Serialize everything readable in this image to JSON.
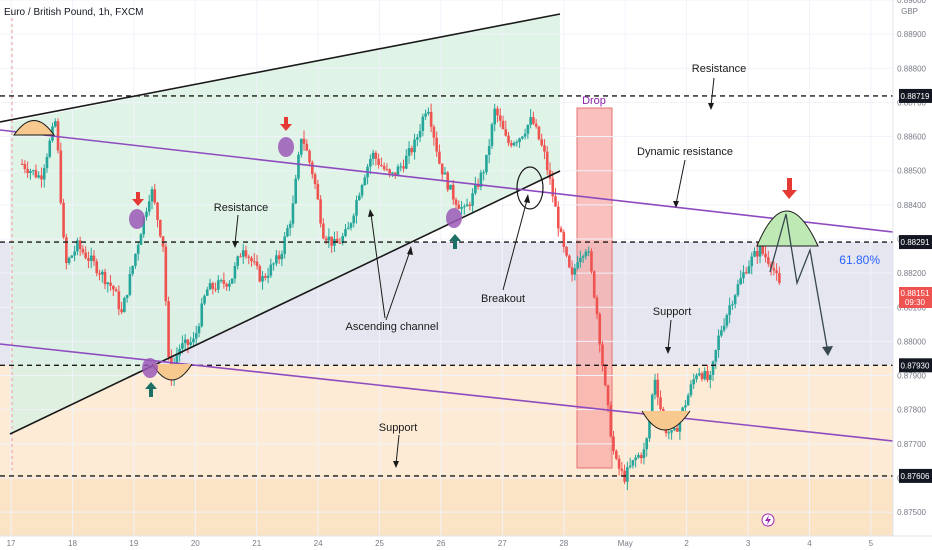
{
  "header": {
    "title": "Euro / British Pound, 1h, FXCM"
  },
  "currency": "GBP",
  "chart_data": {
    "type": "candlestick",
    "instrument": "Euro / British Pound",
    "timeframe": "1h",
    "exchange": "FXCM",
    "y_unit": "GBP",
    "ylim": [
      0.8743,
      0.89
    ],
    "y_ticks": [
      "0.89000",
      "0.88900",
      "0.88800",
      "0.88700",
      "0.88600",
      "0.88500",
      "0.88400",
      "0.88300",
      "0.88200",
      "0.88100",
      "0.88000",
      "0.87900",
      "0.87800",
      "0.87700",
      "0.87600",
      "0.87500"
    ],
    "x_ticks": [
      {
        "label": "17",
        "t": -0.18
      },
      {
        "label": "18",
        "t": 0.82
      },
      {
        "label": "19",
        "t": 1.82
      },
      {
        "label": "20",
        "t": 2.82
      },
      {
        "label": "21",
        "t": 3.82
      },
      {
        "label": "24",
        "t": 4.82
      },
      {
        "label": "25",
        "t": 5.82
      },
      {
        "label": "26",
        "t": 6.82
      },
      {
        "label": "27",
        "t": 7.82
      },
      {
        "label": "28",
        "t": 8.82
      },
      {
        "label": "May",
        "t": 9.82
      },
      {
        "label": "2",
        "t": 10.82
      },
      {
        "label": "3",
        "t": 11.82
      },
      {
        "label": "4",
        "t": 12.82
      },
      {
        "label": "5",
        "t": 13.82
      }
    ],
    "price_path": [
      [
        0.0,
        0.8852
      ],
      [
        0.3,
        0.8848
      ],
      [
        0.55,
        0.8865
      ],
      [
        0.7,
        0.8822
      ],
      [
        0.9,
        0.8828
      ],
      [
        1.2,
        0.8822
      ],
      [
        1.5,
        0.8815
      ],
      [
        1.62,
        0.8808
      ],
      [
        1.9,
        0.883
      ],
      [
        2.1,
        0.8845
      ],
      [
        2.3,
        0.8828
      ],
      [
        2.4,
        0.8788
      ],
      [
        2.55,
        0.8798
      ],
      [
        2.8,
        0.88
      ],
      [
        3.0,
        0.8815
      ],
      [
        3.4,
        0.8818
      ],
      [
        3.6,
        0.8828
      ],
      [
        3.9,
        0.8818
      ],
      [
        4.2,
        0.8825
      ],
      [
        4.4,
        0.8838
      ],
      [
        4.55,
        0.8861
      ],
      [
        4.75,
        0.8848
      ],
      [
        4.9,
        0.8832
      ],
      [
        5.1,
        0.8828
      ],
      [
        5.3,
        0.8832
      ],
      [
        5.55,
        0.8848
      ],
      [
        5.7,
        0.8855
      ],
      [
        6.0,
        0.8848
      ],
      [
        6.2,
        0.8852
      ],
      [
        6.4,
        0.8858
      ],
      [
        6.6,
        0.887
      ],
      [
        6.8,
        0.8852
      ],
      [
        7.0,
        0.8843
      ],
      [
        7.2,
        0.8838
      ],
      [
        7.35,
        0.8843
      ],
      [
        7.55,
        0.8852
      ],
      [
        7.7,
        0.8868
      ],
      [
        7.9,
        0.8858
      ],
      [
        8.1,
        0.886
      ],
      [
        8.3,
        0.8865
      ],
      [
        8.5,
        0.8855
      ],
      [
        8.65,
        0.8842
      ],
      [
        8.8,
        0.8828
      ],
      [
        8.95,
        0.8818
      ],
      [
        9.05,
        0.8825
      ],
      [
        9.2,
        0.8828
      ],
      [
        9.35,
        0.881
      ],
      [
        9.5,
        0.8785
      ],
      [
        9.65,
        0.8765
      ],
      [
        9.8,
        0.876
      ],
      [
        10.0,
        0.8766
      ],
      [
        10.15,
        0.8768
      ],
      [
        10.3,
        0.879
      ],
      [
        10.45,
        0.8775
      ],
      [
        10.6,
        0.8772
      ],
      [
        10.8,
        0.8782
      ],
      [
        11.0,
        0.8792
      ],
      [
        11.2,
        0.8788
      ],
      [
        11.35,
        0.8802
      ],
      [
        11.55,
        0.8812
      ],
      [
        11.8,
        0.8822
      ],
      [
        12.0,
        0.8827
      ],
      [
        12.2,
        0.8823
      ],
      [
        12.35,
        0.8815
      ]
    ],
    "current_price": "0.88151",
    "countdown": "09:30",
    "fib_label": "61.80%",
    "levels": [
      {
        "value": "0.88719",
        "price": 0.88719,
        "kind": "resistance"
      },
      {
        "value": "0.88291",
        "price": 0.88291,
        "kind": "fibonacci"
      },
      {
        "value": "0.87930",
        "price": 0.8793,
        "kind": "support"
      },
      {
        "value": "0.87606",
        "price": 0.87606,
        "kind": "support"
      }
    ],
    "annotations": {
      "resistance_top": "Resistance",
      "dynamic_resistance": "Dynamic resistance",
      "resistance_mid": "Resistance",
      "breakout": "Breakout",
      "ascending_channel": "Ascending channel",
      "support_mid": "Support",
      "support_bottom": "Support",
      "drop": "Drop"
    },
    "colors": {
      "up": "#26a69a",
      "down": "#ef5350",
      "channel_fill": "#d9f1e3",
      "zone_fill": "#e6e6f1",
      "support_fill": "#fdebd6",
      "drop_fill": "#f6a5a2",
      "trend_line": "#8e4bbf",
      "pivot_marker": "#9b59b6",
      "fib_text": "#2962ff",
      "price_badge": "#ef5350",
      "projection_fill": "#bfe9b4"
    }
  }
}
